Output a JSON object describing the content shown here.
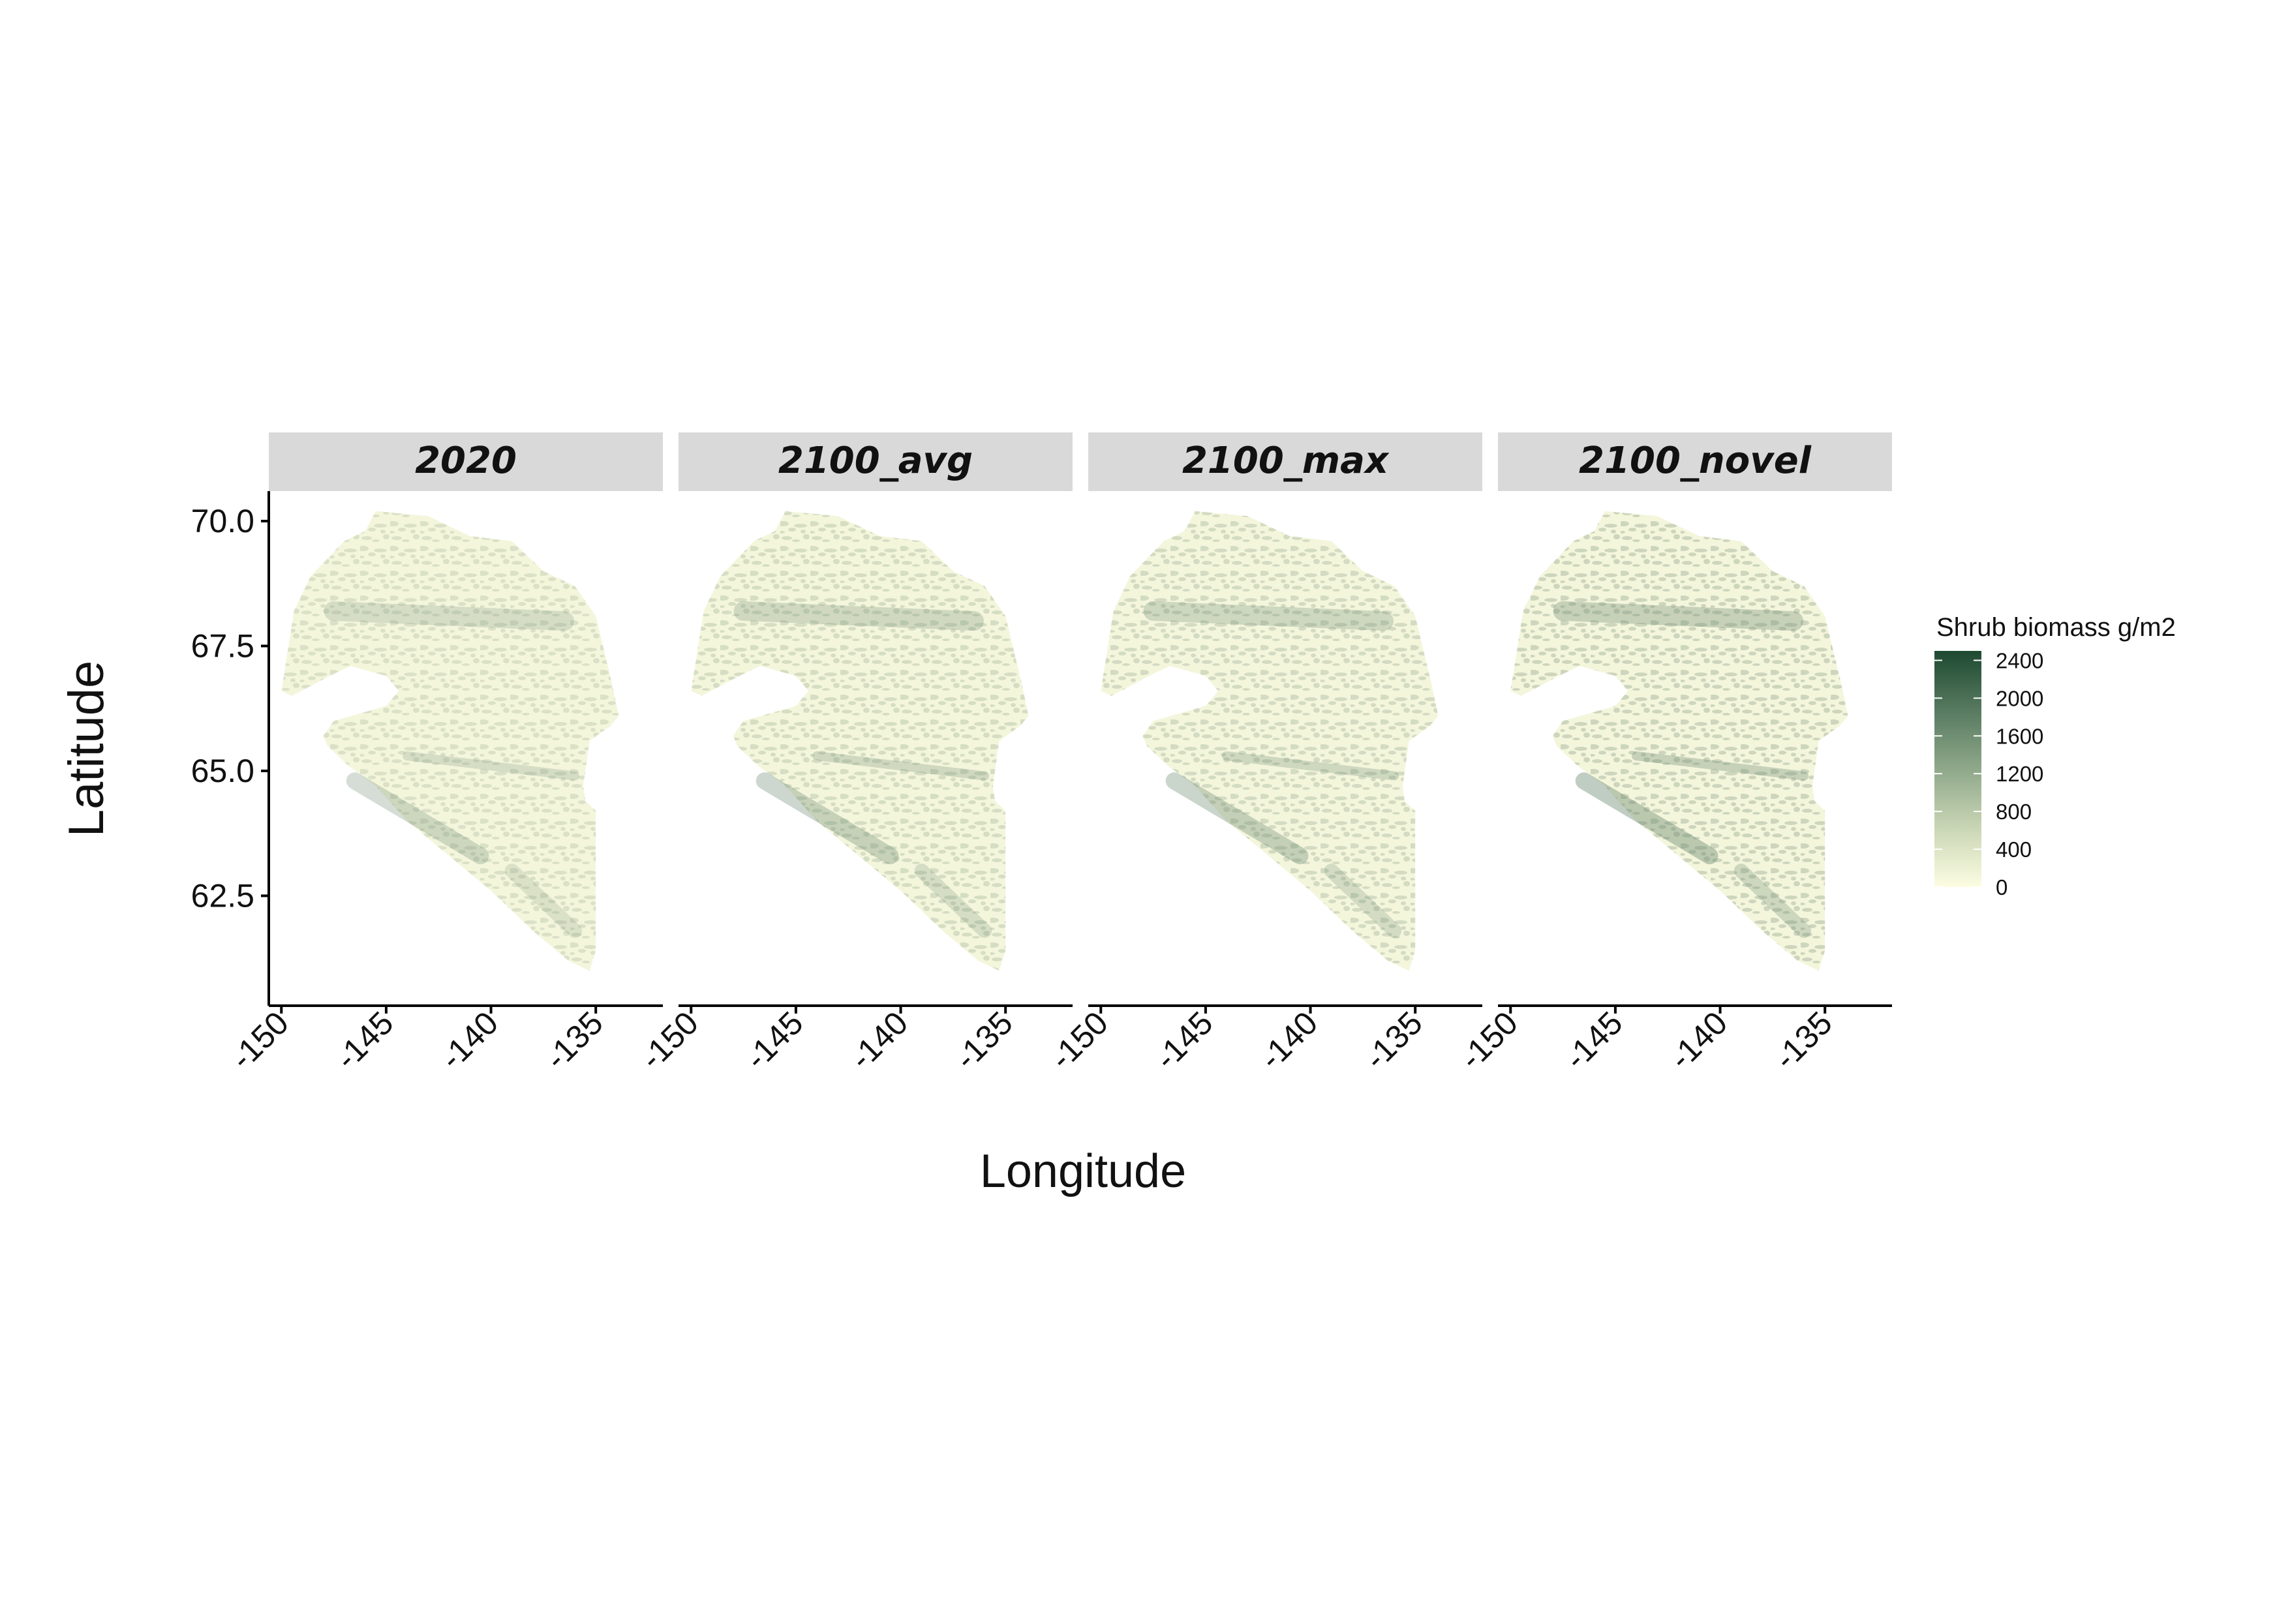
{
  "chart_data": {
    "type": "heatmap",
    "subtype": "faceted raster map",
    "panels": [
      {
        "label": "2020",
        "intensity": 0.16
      },
      {
        "label": "2100_avg",
        "intensity": 0.19
      },
      {
        "label": "2100_max",
        "intensity": 0.2
      },
      {
        "label": "2100_novel",
        "intensity": 0.24
      }
    ],
    "xlabel": "Longitude",
    "ylabel": "Latitude",
    "x_ticks": [
      {
        "value": -150,
        "label": "-150"
      },
      {
        "value": -145,
        "label": "-145"
      },
      {
        "value": -140,
        "label": "-140"
      },
      {
        "value": -135,
        "label": "-135"
      }
    ],
    "y_ticks": [
      {
        "value": 62.5,
        "label": "62.5"
      },
      {
        "value": 65.0,
        "label": "65.0"
      },
      {
        "value": 67.5,
        "label": "67.5"
      },
      {
        "value": 70.0,
        "label": "70.0"
      }
    ],
    "xlim": [
      -150.6,
      -131.8
    ],
    "ylim": [
      60.3,
      70.6
    ],
    "region_outline": [
      [
        -150.0,
        66.6
      ],
      [
        -149.4,
        68.2
      ],
      [
        -148.6,
        68.9
      ],
      [
        -147.0,
        69.6
      ],
      [
        -146.0,
        69.8
      ],
      [
        -145.5,
        70.2
      ],
      [
        -143.0,
        70.1
      ],
      [
        -141.0,
        69.7
      ],
      [
        -139.0,
        69.6
      ],
      [
        -137.5,
        69.0
      ],
      [
        -136.0,
        68.7
      ],
      [
        -135.0,
        68.1
      ],
      [
        -134.2,
        66.7
      ],
      [
        -133.9,
        66.1
      ],
      [
        -134.3,
        65.9
      ],
      [
        -135.3,
        65.6
      ],
      [
        -135.6,
        64.7
      ],
      [
        -135.5,
        64.4
      ],
      [
        -135.0,
        64.2
      ],
      [
        -135.0,
        61.4
      ],
      [
        -135.3,
        61.0
      ],
      [
        -136.3,
        61.2
      ],
      [
        -138.0,
        61.8
      ],
      [
        -140.0,
        62.6
      ],
      [
        -142.0,
        63.3
      ],
      [
        -144.0,
        64.0
      ],
      [
        -145.5,
        64.7
      ],
      [
        -146.8,
        65.1
      ],
      [
        -147.8,
        65.5
      ],
      [
        -148.0,
        65.7
      ],
      [
        -147.5,
        66.0
      ],
      [
        -145.0,
        66.3
      ],
      [
        -144.4,
        66.6
      ],
      [
        -145.0,
        66.9
      ],
      [
        -146.7,
        67.1
      ],
      [
        -147.7,
        66.9
      ],
      [
        -149.5,
        66.5
      ]
    ],
    "legend": {
      "title": "Shrub biomass g/m2",
      "position": "right",
      "min": 0,
      "max": 2500,
      "ticks": [
        "0",
        "400",
        "800",
        "1200",
        "1600",
        "2000",
        "2400"
      ],
      "tick_values": [
        0,
        400,
        800,
        1200,
        1600,
        2000,
        2400
      ],
      "colors": [
        "#fcfde2",
        "#c9d6b5",
        "#8fa88a",
        "#577a60",
        "#1e4a31"
      ]
    },
    "strip_color": "#d9d9d9",
    "grid": false
  }
}
